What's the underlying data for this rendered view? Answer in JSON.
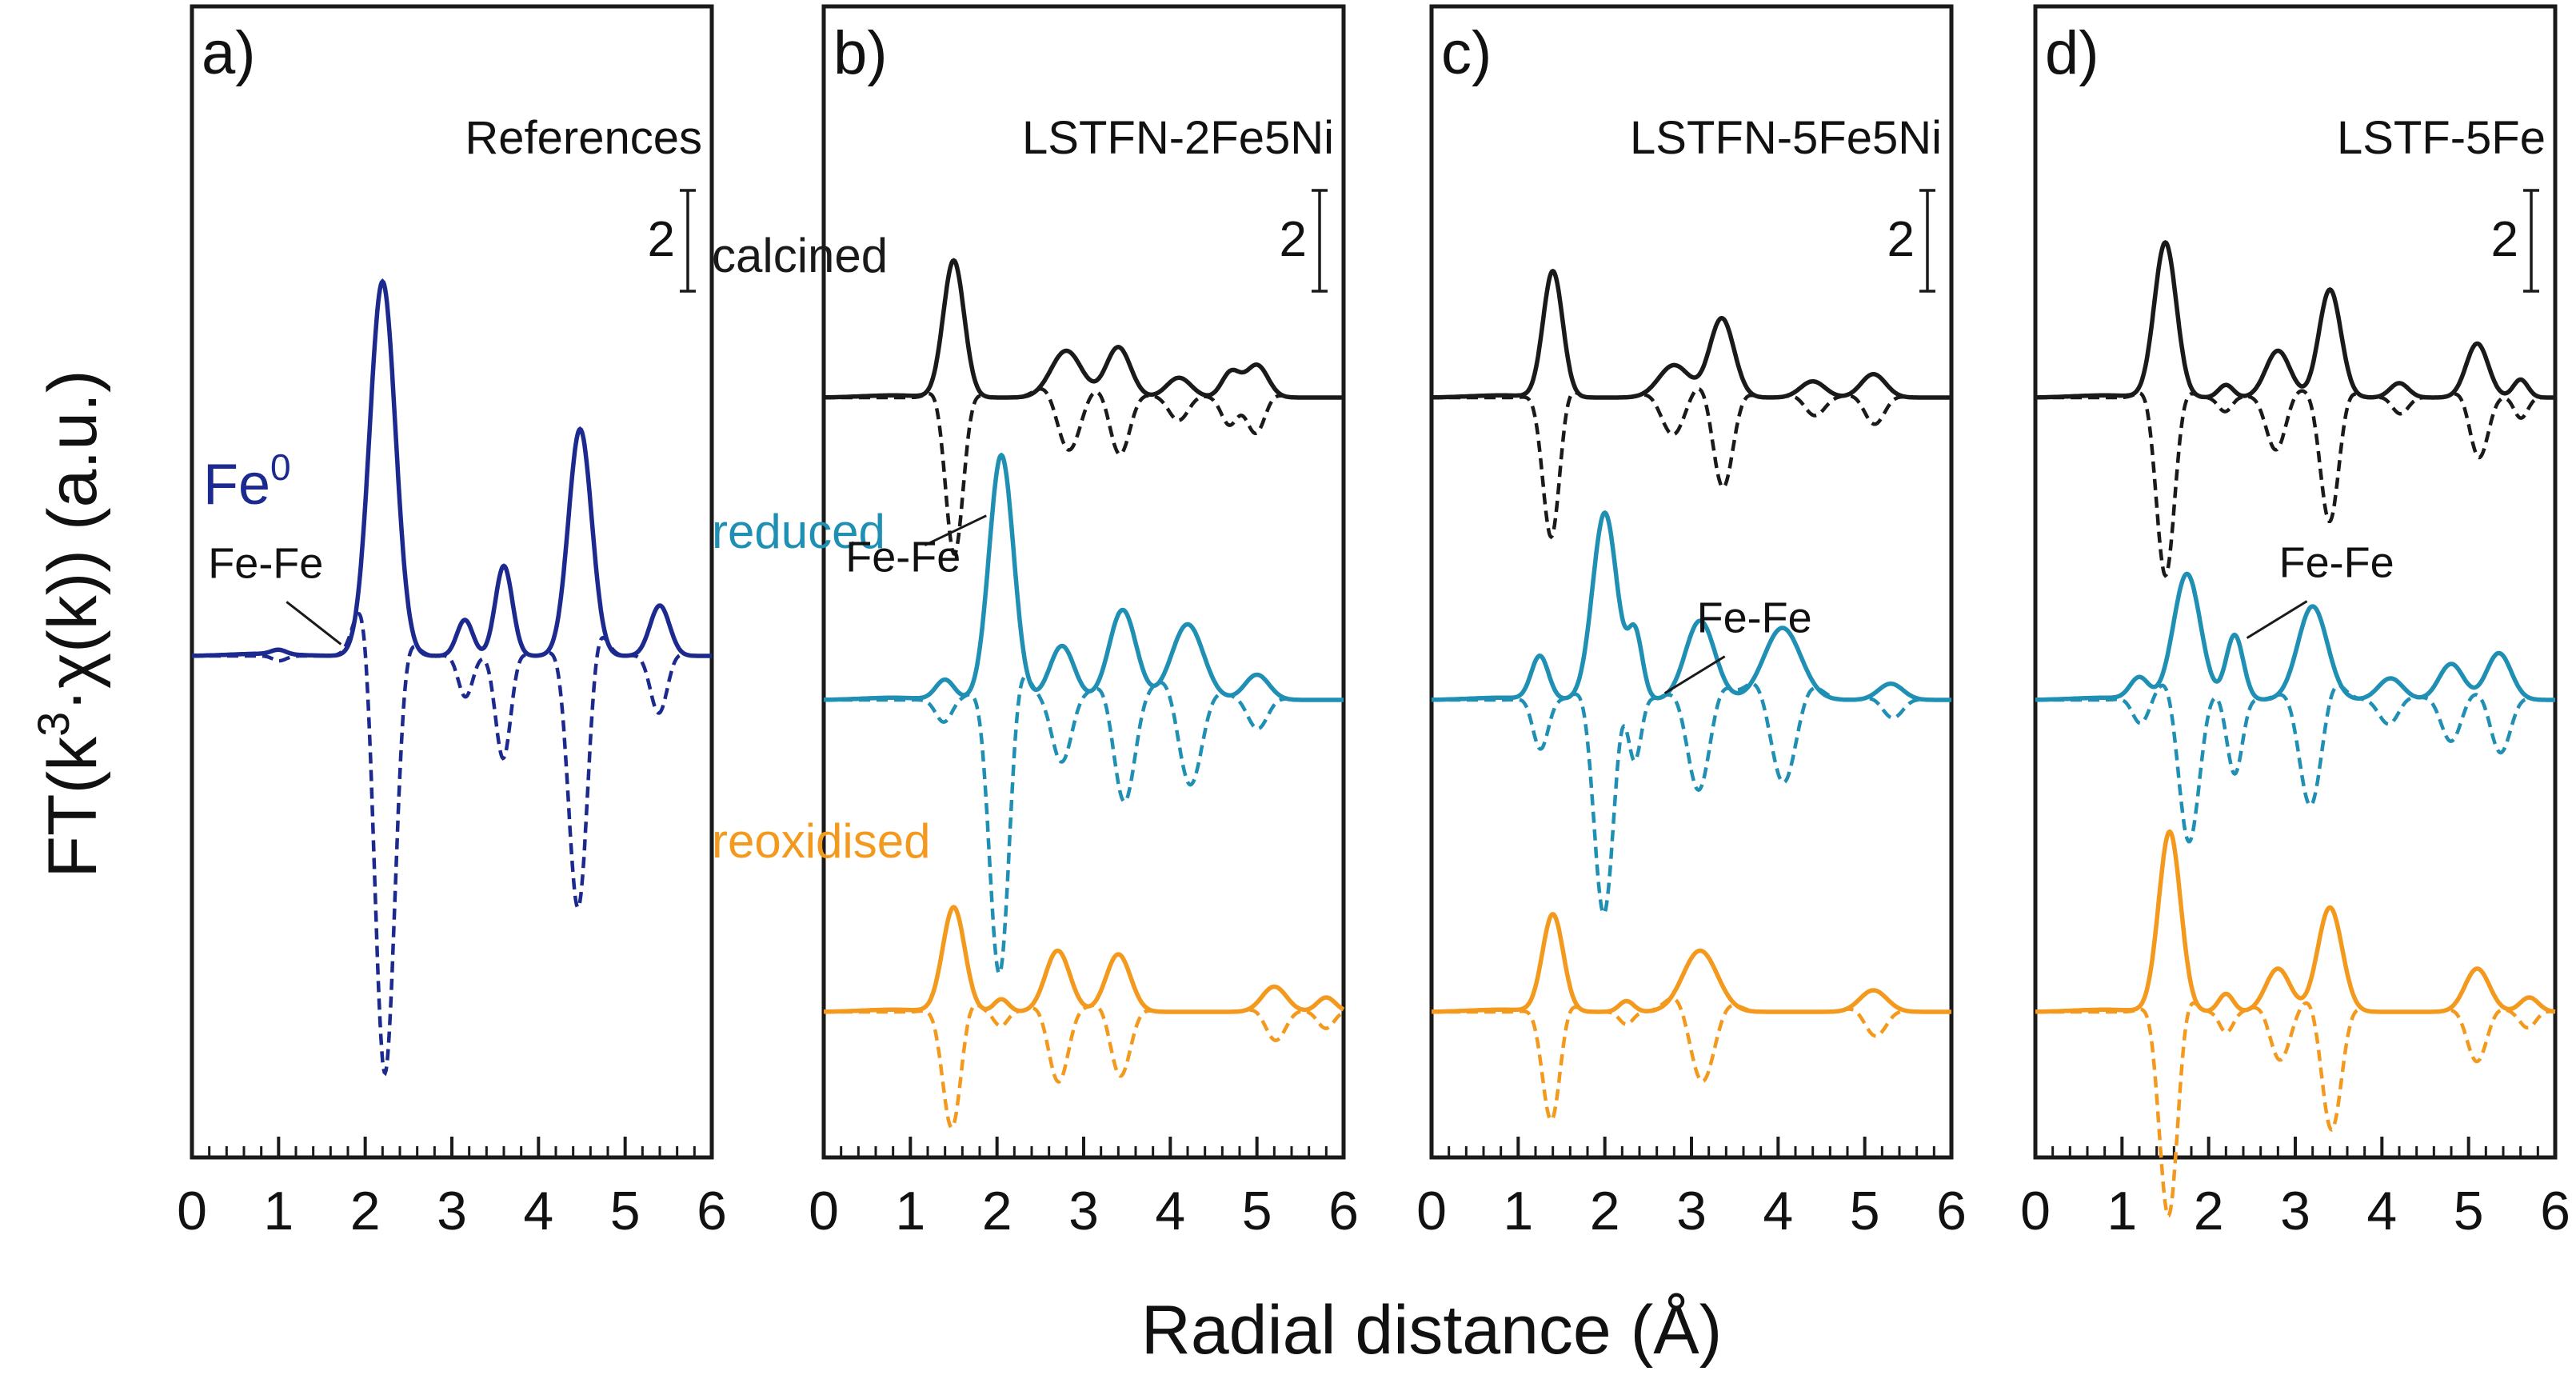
{
  "chart_data": {
    "type": "line",
    "xlabel": "Radial distance (Å)",
    "ylabel": {
      "prefix": "FT(k",
      "superscript": "3",
      "suffix": "·χ(k)) (a.u.)"
    },
    "xlim": [
      0,
      6
    ],
    "x_ticks": [
      "0",
      "1",
      "2",
      "3",
      "4",
      "5",
      "6"
    ],
    "scale_bar_label": "2",
    "colors": {
      "Fe0": "#1c2a8f",
      "calcined": "#1a1a1a",
      "reduced": "#1f8fb4",
      "reoxidised": "#f39a1e"
    },
    "line_styles": {
      "magnitude": "solid",
      "imaginary_part": "dashed"
    },
    "panels": [
      {
        "label": "a)",
        "title": "References",
        "series": [
          {
            "name": "Fe0",
            "label_text": "Fe",
            "label_superscript": "0",
            "color_key": "Fe0",
            "peaks": [
              {
                "r": 1.0,
                "amp": 0.12,
                "w": 0.12
              },
              {
                "r": 2.2,
                "amp": 10.4,
                "w": 0.21
              },
              {
                "r": 3.15,
                "amp": 1.0,
                "w": 0.13
              },
              {
                "r": 3.6,
                "amp": 2.5,
                "w": 0.14
              },
              {
                "r": 4.48,
                "amp": 6.3,
                "w": 0.19
              },
              {
                "r": 5.4,
                "amp": 1.4,
                "w": 0.16
              }
            ],
            "annotation": {
              "text": "Fe-Fe",
              "r": 1.72
            }
          }
        ]
      },
      {
        "label": "b)",
        "title": "LSTFN-2Fe5Ni",
        "series": [
          {
            "name": "calcined",
            "color_key": "calcined",
            "peaks": [
              {
                "r": 1.5,
                "amp": 3.8,
                "w": 0.17
              },
              {
                "r": 2.8,
                "amp": 1.3,
                "w": 0.25
              },
              {
                "r": 3.4,
                "amp": 1.4,
                "w": 0.2
              },
              {
                "r": 4.1,
                "amp": 0.55,
                "w": 0.2
              },
              {
                "r": 4.7,
                "amp": 0.7,
                "w": 0.15
              },
              {
                "r": 5.0,
                "amp": 0.9,
                "w": 0.18
              }
            ]
          },
          {
            "name": "reduced",
            "color_key": "reduced",
            "peaks": [
              {
                "r": 1.4,
                "amp": 0.55,
                "w": 0.15
              },
              {
                "r": 2.05,
                "amp": 6.8,
                "w": 0.2
              },
              {
                "r": 2.75,
                "amp": 1.5,
                "w": 0.2
              },
              {
                "r": 3.45,
                "amp": 2.5,
                "w": 0.22
              },
              {
                "r": 4.2,
                "amp": 2.1,
                "w": 0.26
              },
              {
                "r": 5.0,
                "amp": 0.7,
                "w": 0.2
              }
            ]
          },
          {
            "name": "reoxidised",
            "color_key": "reoxidised",
            "peaks": [
              {
                "r": 1.5,
                "amp": 2.9,
                "w": 0.18
              },
              {
                "r": 2.05,
                "amp": 0.35,
                "w": 0.12
              },
              {
                "r": 2.7,
                "amp": 1.7,
                "w": 0.2
              },
              {
                "r": 3.4,
                "amp": 1.6,
                "w": 0.2
              },
              {
                "r": 5.2,
                "amp": 0.7,
                "w": 0.2
              },
              {
                "r": 5.8,
                "amp": 0.4,
                "w": 0.15
              }
            ]
          }
        ],
        "row_labels": [
          "calcined",
          "reduced",
          "reoxidised"
        ],
        "annotation": {
          "text": "Fe-Fe",
          "series": "reduced",
          "r": 1.95
        }
      },
      {
        "label": "c)",
        "title": "LSTFN-5Fe5Ni",
        "series": [
          {
            "name": "calcined",
            "color_key": "calcined",
            "peaks": [
              {
                "r": 1.4,
                "amp": 3.5,
                "w": 0.16
              },
              {
                "r": 2.8,
                "amp": 0.9,
                "w": 0.25
              },
              {
                "r": 3.35,
                "amp": 2.2,
                "w": 0.2
              },
              {
                "r": 4.4,
                "amp": 0.45,
                "w": 0.2
              },
              {
                "r": 5.1,
                "amp": 0.65,
                "w": 0.2
              }
            ]
          },
          {
            "name": "reduced",
            "color_key": "reduced",
            "peaks": [
              {
                "r": 1.25,
                "amp": 1.2,
                "w": 0.14
              },
              {
                "r": 2.0,
                "amp": 5.2,
                "w": 0.2
              },
              {
                "r": 2.35,
                "amp": 1.8,
                "w": 0.12
              },
              {
                "r": 3.1,
                "amp": 2.2,
                "w": 0.24
              },
              {
                "r": 4.05,
                "amp": 2.0,
                "w": 0.3
              },
              {
                "r": 5.3,
                "amp": 0.45,
                "w": 0.2
              }
            ]
          },
          {
            "name": "reoxidised",
            "color_key": "reoxidised",
            "peaks": [
              {
                "r": 1.4,
                "amp": 2.7,
                "w": 0.17
              },
              {
                "r": 2.25,
                "amp": 0.3,
                "w": 0.12
              },
              {
                "r": 3.1,
                "amp": 1.7,
                "w": 0.28
              },
              {
                "r": 5.1,
                "amp": 0.6,
                "w": 0.22
              }
            ]
          }
        ],
        "annotation": {
          "text": "Fe-Fe",
          "series": "reduced",
          "r": 2.6
        }
      },
      {
        "label": "d)",
        "title": "LSTF-5Fe",
        "series": [
          {
            "name": "calcined",
            "color_key": "calcined",
            "peaks": [
              {
                "r": 1.5,
                "amp": 4.3,
                "w": 0.18
              },
              {
                "r": 2.2,
                "amp": 0.35,
                "w": 0.12
              },
              {
                "r": 2.8,
                "amp": 1.3,
                "w": 0.2
              },
              {
                "r": 3.4,
                "amp": 3.0,
                "w": 0.18
              },
              {
                "r": 4.2,
                "amp": 0.4,
                "w": 0.15
              },
              {
                "r": 5.1,
                "amp": 1.5,
                "w": 0.18
              },
              {
                "r": 5.6,
                "amp": 0.5,
                "w": 0.12
              }
            ]
          },
          {
            "name": "reduced",
            "color_key": "reduced",
            "peaks": [
              {
                "r": 1.2,
                "amp": 0.6,
                "w": 0.15
              },
              {
                "r": 1.75,
                "amp": 3.5,
                "w": 0.22
              },
              {
                "r": 2.3,
                "amp": 1.8,
                "w": 0.14
              },
              {
                "r": 3.2,
                "amp": 2.6,
                "w": 0.24
              },
              {
                "r": 4.1,
                "amp": 0.6,
                "w": 0.2
              },
              {
                "r": 4.8,
                "amp": 1.0,
                "w": 0.2
              },
              {
                "r": 5.35,
                "amp": 1.3,
                "w": 0.2
              }
            ]
          },
          {
            "name": "reoxidised",
            "color_key": "reoxidised",
            "peaks": [
              {
                "r": 1.55,
                "amp": 5.0,
                "w": 0.18
              },
              {
                "r": 2.2,
                "amp": 0.5,
                "w": 0.12
              },
              {
                "r": 2.8,
                "amp": 1.2,
                "w": 0.2
              },
              {
                "r": 3.4,
                "amp": 2.9,
                "w": 0.2
              },
              {
                "r": 5.1,
                "amp": 1.2,
                "w": 0.2
              },
              {
                "r": 5.7,
                "amp": 0.4,
                "w": 0.15
              }
            ]
          }
        ],
        "annotation": {
          "text": "Fe-Fe",
          "series": "reduced",
          "r": 2.35
        }
      }
    ]
  }
}
